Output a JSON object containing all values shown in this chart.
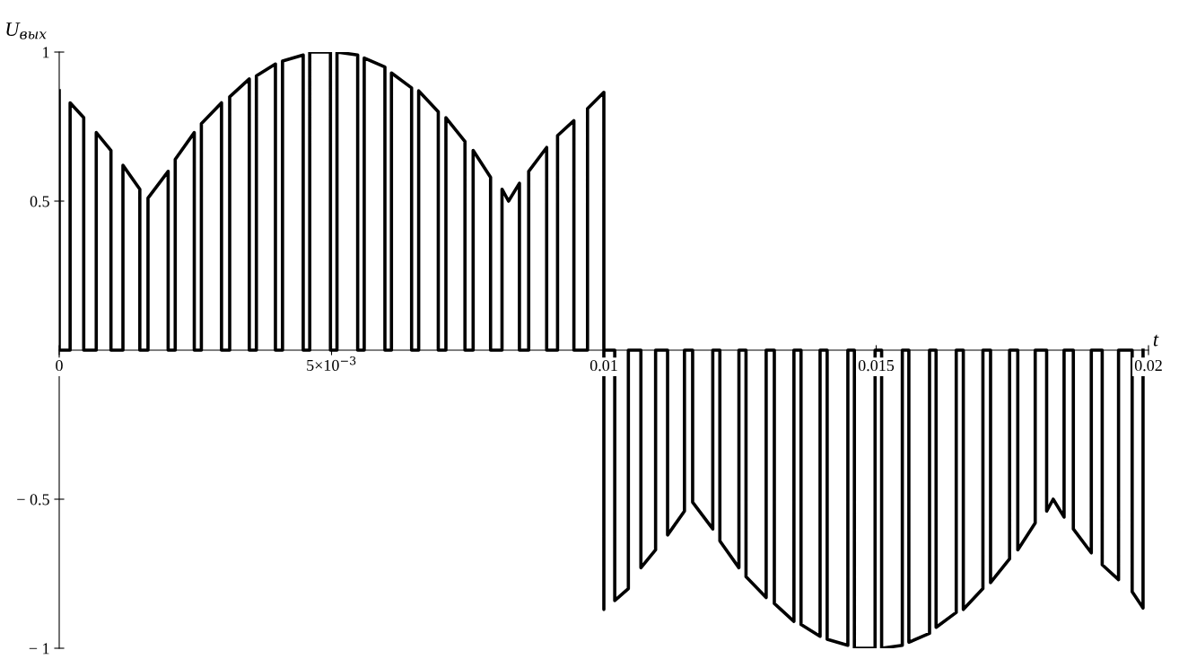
{
  "chart_data": {
    "type": "line",
    "xlabel": "t",
    "ylabel": "U$_{вых}$",
    "xlim": [
      0,
      0.02
    ],
    "ylim": [
      -1,
      1
    ],
    "xticks": [
      0,
      {
        "value": 0.005,
        "label": "5×10$^{−3}$"
      },
      0.01,
      0.015,
      0.02
    ],
    "yticks": [
      {
        "value": -1,
        "label": "− 1"
      },
      {
        "value": -0.5,
        "label": "− 0.5"
      },
      0.5,
      1
    ],
    "grid": false,
    "x": [
      0,
      0,
      0.0002,
      0.0002,
      0.00045,
      0.00045,
      0.00068,
      0.00068,
      0.00095,
      0.00095,
      0.00117,
      0.00117,
      0.00148,
      0.00148,
      0.00163,
      0.00163,
      0.002,
      0.002,
      0.00213,
      0.00213,
      0.00248,
      0.00248,
      0.00261,
      0.00261,
      0.00298,
      0.00298,
      0.00313,
      0.00313,
      0.00349,
      0.00349,
      0.00362,
      0.00362,
      0.00397,
      0.00397,
      0.0041,
      0.0041,
      0.00448,
      0.00448,
      0.0046,
      0.0046,
      0.00498,
      0.00498,
      0.0051,
      0.0051,
      0.00548,
      0.00548,
      0.0056,
      0.0056,
      0.00598,
      0.00598,
      0.0061,
      0.0061,
      0.00647,
      0.00647,
      0.0066,
      0.0066,
      0.00696,
      0.00696,
      0.0071,
      0.0071,
      0.00745,
      0.00745,
      0.0076,
      0.0076,
      0.00792,
      0.00792,
      0.00813,
      0.00813,
      0.00825,
      0.00845,
      0.00845,
      0.00862,
      0.00862,
      0.00895,
      0.00895,
      0.00915,
      0.00915,
      0.00945,
      0.00945,
      0.0097,
      0.0097,
      0.01,
      0.01,
      0.01,
      0.0102,
      0.0102,
      0.01045,
      0.01045,
      0.01068,
      0.01068,
      0.01095,
      0.01095,
      0.01117,
      0.01117,
      0.01148,
      0.01148,
      0.01163,
      0.01163,
      0.012,
      0.012,
      0.01213,
      0.01213,
      0.01248,
      0.01248,
      0.01261,
      0.01261,
      0.01298,
      0.01298,
      0.01313,
      0.01313,
      0.01349,
      0.01349,
      0.01362,
      0.01362,
      0.01397,
      0.01397,
      0.0141,
      0.0141,
      0.01448,
      0.01448,
      0.0146,
      0.0146,
      0.01498,
      0.01498,
      0.0151,
      0.0151,
      0.01548,
      0.01548,
      0.0156,
      0.0156,
      0.01598,
      0.01598,
      0.0161,
      0.0161,
      0.01647,
      0.01647,
      0.0166,
      0.0166,
      0.01696,
      0.01696,
      0.0171,
      0.0171,
      0.01745,
      0.01745,
      0.0176,
      0.0176,
      0.01792,
      0.01792,
      0.01813,
      0.01813,
      0.01825,
      0.01845,
      0.01845,
      0.01862,
      0.01862,
      0.01895,
      0.01895,
      0.01915,
      0.01915,
      0.01945,
      0.01945,
      0.0197,
      0.0197,
      0.0199,
      0.0199
    ],
    "series": [
      {
        "color": "#000000",
        "values": [
          0.87,
          0,
          0,
          0.83,
          0.78,
          0,
          0,
          0.73,
          0.67,
          0,
          0,
          0.62,
          0.54,
          0,
          0,
          0.51,
          0.6,
          0,
          0,
          0.64,
          0.73,
          0,
          0,
          0.76,
          0.83,
          0,
          0,
          0.85,
          0.91,
          0,
          0,
          0.92,
          0.96,
          0,
          0,
          0.97,
          0.99,
          0,
          0,
          1,
          1,
          0,
          0,
          1,
          0.99,
          0,
          0,
          0.98,
          0.95,
          0,
          0,
          0.93,
          0.88,
          0,
          0,
          0.87,
          0.8,
          0,
          0,
          0.78,
          0.7,
          0,
          0,
          0.67,
          0.58,
          0,
          0,
          0.54,
          0.5,
          0.56,
          0,
          0,
          0.6,
          0.68,
          0,
          0,
          0.72,
          0.77,
          0,
          0,
          0.81,
          0.865,
          -0.87,
          0,
          0,
          -0.84,
          -0.8,
          0,
          0,
          -0.73,
          -0.67,
          0,
          0,
          -0.62,
          -0.54,
          0,
          0,
          -0.51,
          -0.6,
          0,
          0,
          -0.64,
          -0.73,
          0,
          0,
          -0.76,
          -0.83,
          0,
          0,
          -0.85,
          -0.91,
          0,
          0,
          -0.92,
          -0.96,
          0,
          0,
          -0.97,
          -0.99,
          0,
          0,
          -1,
          -1,
          0,
          0,
          -1,
          -0.99,
          0,
          0,
          -0.98,
          -0.95,
          0,
          0,
          -0.93,
          -0.88,
          0,
          0,
          -0.87,
          -0.8,
          0,
          0,
          -0.78,
          -0.7,
          0,
          0,
          -0.67,
          -0.58,
          0,
          0,
          -0.54,
          -0.5,
          -0.56,
          0,
          0,
          -0.6,
          -0.68,
          0,
          0,
          -0.72,
          -0.77,
          0,
          0,
          -0.81,
          -0.865,
          0
        ]
      }
    ]
  }
}
